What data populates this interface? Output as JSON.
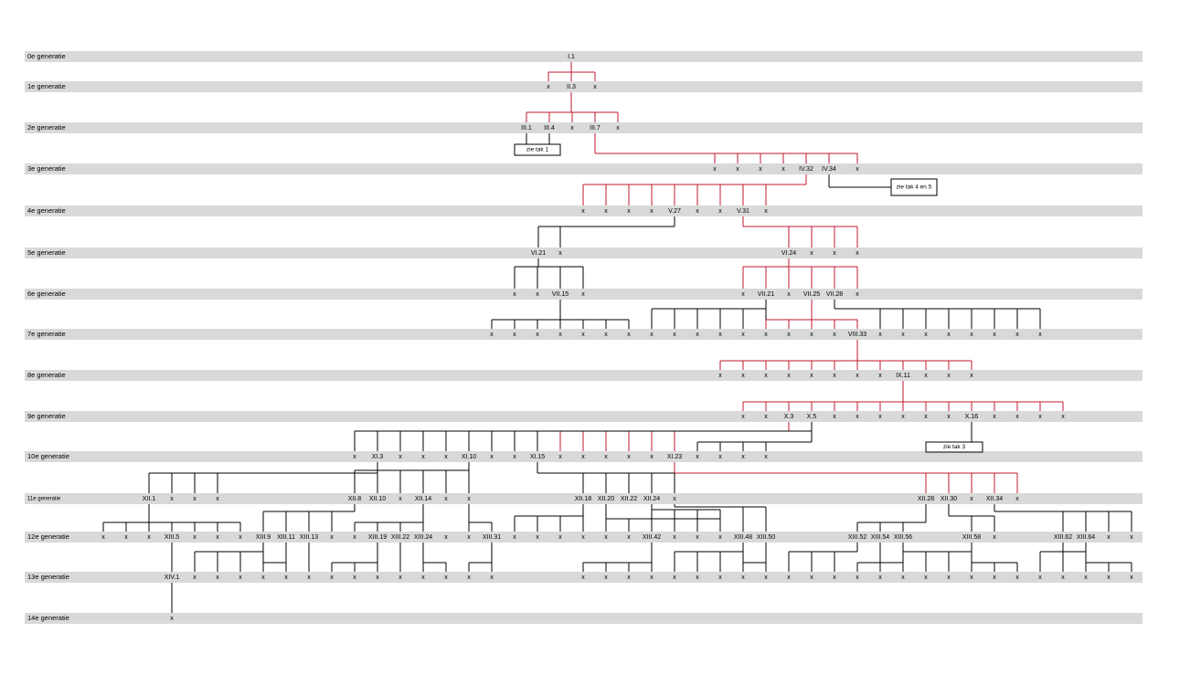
{
  "rows": [
    {
      "label": "0e generatie",
      "nodes": [
        "I.1"
      ]
    },
    {
      "label": "1e generatie",
      "nodes": [
        "x",
        "II.3",
        "x"
      ]
    },
    {
      "label": "2e generatie",
      "nodes": [
        "III.1",
        "III.4",
        "x",
        "III.7",
        "x"
      ]
    },
    {
      "label": "3e generatie",
      "nodes": [
        "x",
        "x",
        "x",
        "x",
        "IV.32",
        "IV.34",
        "x"
      ]
    },
    {
      "label": "4e generatie",
      "nodes": [
        "x",
        "x",
        "x",
        "x",
        "V.27",
        "x",
        "x",
        "V.31",
        "x"
      ]
    },
    {
      "label": "5e generatie",
      "nodes": [
        "VI.21",
        "x",
        "VI.24",
        "x",
        "x",
        "x"
      ]
    },
    {
      "label": "6e generatie",
      "nodes": [
        "x",
        "x",
        "VII.15",
        "x",
        "x",
        "VII.21",
        "x",
        "VII.25",
        "VII.28",
        "x"
      ]
    },
    {
      "label": "7e generatie",
      "nodes": [
        "x",
        "x",
        "x",
        "x",
        "x",
        "x",
        "x",
        "x",
        "x",
        "x",
        "x",
        "x",
        "x",
        "x",
        "x",
        "x",
        "VIII.33",
        "x",
        "x",
        "x",
        "x",
        "x",
        "x",
        "x",
        "x"
      ]
    },
    {
      "label": "8e generatie",
      "nodes": [
        "x",
        "x",
        "x",
        "x",
        "x",
        "x",
        "x",
        "x",
        "IX.11",
        "x",
        "x",
        "x"
      ]
    },
    {
      "label": "9e generatie",
      "nodes": [
        "x",
        "x",
        "X.3",
        "X.5",
        "x",
        "x",
        "x",
        "x",
        "x",
        "x",
        "X.16",
        "x",
        "x",
        "x",
        "x"
      ]
    },
    {
      "label": "10e generatie",
      "nodes": [
        "x",
        "XI.3",
        "x",
        "x",
        "x",
        "XI.10",
        "x",
        "x",
        "XI.15",
        "x",
        "x",
        "x",
        "x",
        "x",
        "XI.23",
        "x",
        "x",
        "x",
        "x"
      ]
    },
    {
      "label": "11e generatie",
      "nodes": [
        "XII.1",
        "x",
        "x",
        "x",
        "XII.8",
        "XII.10",
        "x",
        "XII.14",
        "x",
        "x",
        "XII.18",
        "XII.20",
        "XII.22",
        "XII.24",
        "x",
        "XII.28",
        "XII.30",
        "x",
        "XII.34",
        "x"
      ]
    },
    {
      "label": "12e generatie",
      "nodes": [
        "x",
        "x",
        "x",
        "XIII.5",
        "x",
        "x",
        "x",
        "XIII.9",
        "XIII.11",
        "XIII.13",
        "x",
        "x",
        "XIII.19",
        "XIII.22",
        "XIII.24",
        "x",
        "x",
        "XIII.31",
        "x",
        "x",
        "x",
        "x",
        "x",
        "x",
        "XIII.42",
        "x",
        "x",
        "x",
        "XIII.48",
        "XIII.50",
        "XIII.52",
        "XIII.54",
        "XIII.56",
        "XIII.58",
        "x",
        "XIII.62",
        "XIII.64",
        "x",
        "x"
      ]
    },
    {
      "label": "13e generatie",
      "nodes": [
        "XIV.1",
        "x",
        "x",
        "x",
        "x",
        "x",
        "x",
        "x",
        "x",
        "x",
        "x",
        "x",
        "x",
        "x",
        "x",
        "x",
        "x",
        "x",
        "x",
        "x",
        "x",
        "x",
        "x",
        "x",
        "x",
        "x",
        "x",
        "x",
        "x",
        "x",
        "x",
        "x",
        "x",
        "x",
        "x",
        "x",
        "x",
        "x",
        "x",
        "x"
      ]
    },
    {
      "label": "14e generatie",
      "nodes": [
        "x"
      ]
    }
  ],
  "notes": [
    "zie tak 1",
    "zie tak 4 en 5",
    "zie tak 3"
  ]
}
